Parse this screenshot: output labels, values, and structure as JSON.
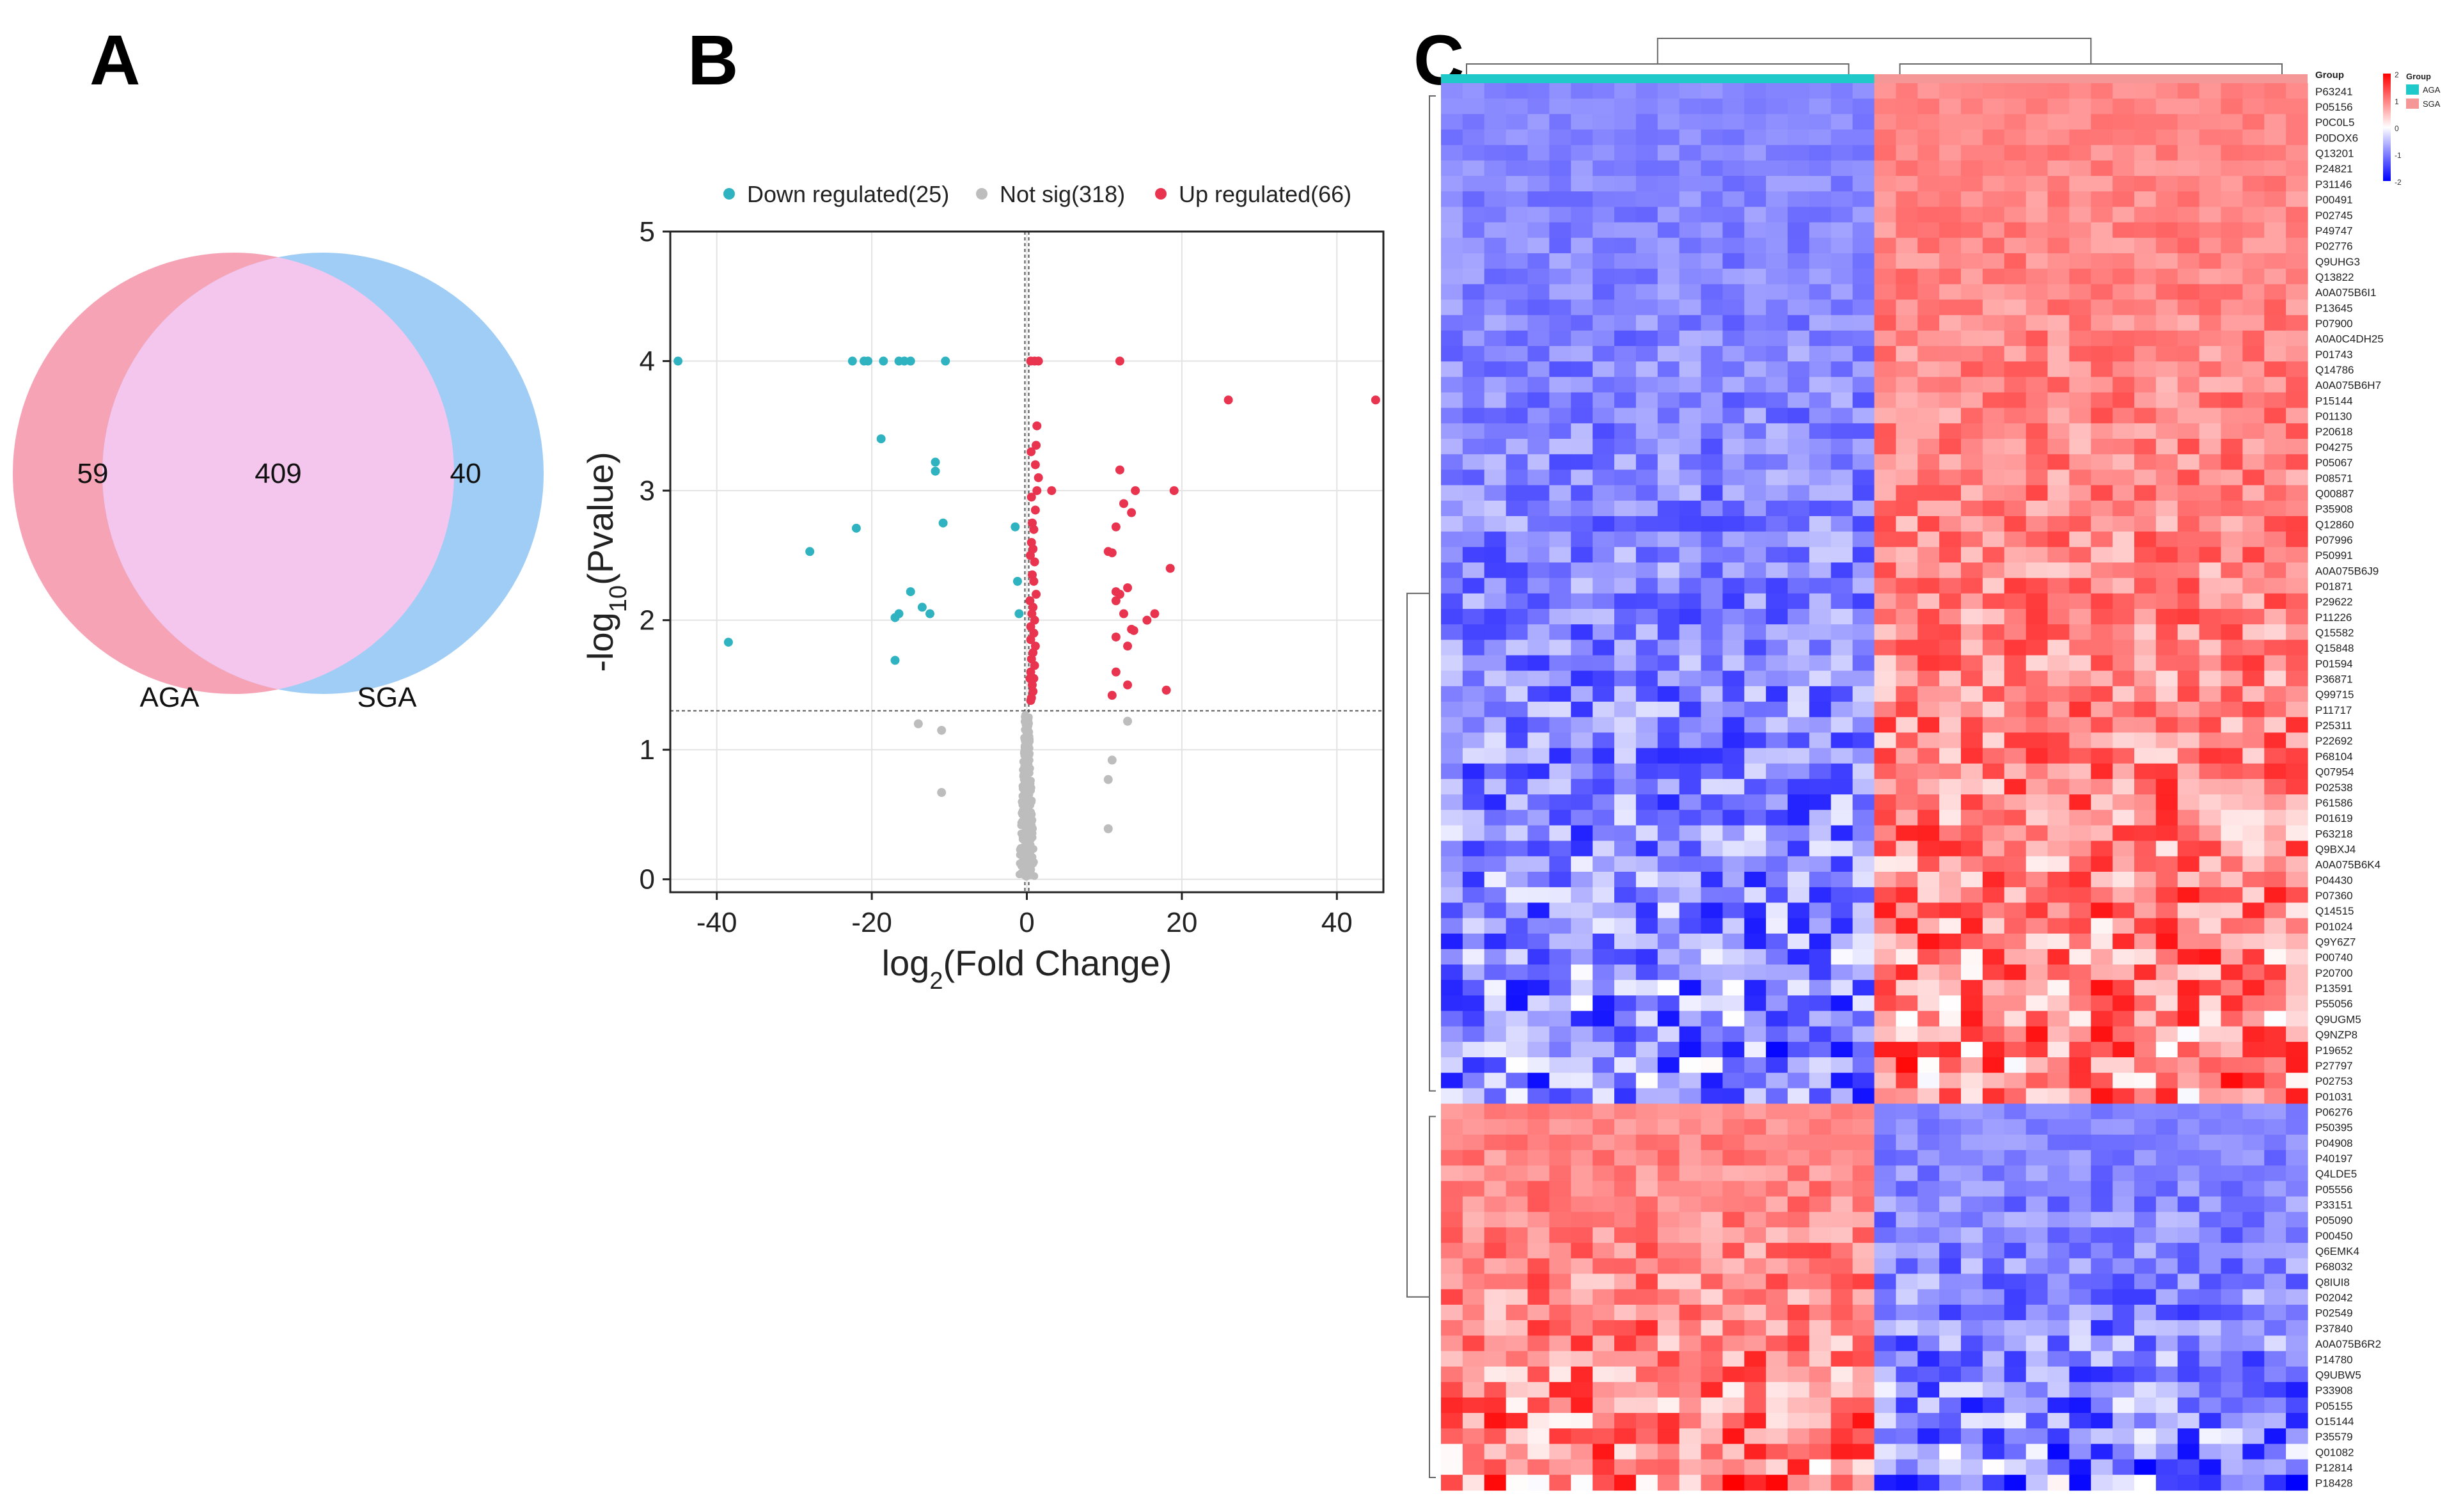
{
  "panels": {
    "a": "A",
    "b": "B",
    "c": "C"
  },
  "chart_data": [
    {
      "type": "venn",
      "sets": [
        {
          "name": "AGA",
          "only": 59,
          "color": "#f7a3b6"
        },
        {
          "name": "SGA",
          "only": 40,
          "color": "#9fcdf5"
        }
      ],
      "intersection": 409,
      "intersection_color": "#f4c6ee"
    },
    {
      "type": "scatter",
      "xlabel": "log2(Fold Change)",
      "ylabel": "-log10(Pvalue)",
      "xlim": [
        -46,
        46
      ],
      "ylim": [
        -0.1,
        5
      ],
      "xticks": [
        -40,
        -20,
        0,
        20,
        40
      ],
      "yticks": [
        0,
        1,
        2,
        3,
        4,
        5
      ],
      "thresholds": {
        "pvalue_line": 1.3,
        "fc_lines": [
          -0.25,
          0.25
        ]
      },
      "legend": {
        "position": "top",
        "entries": [
          {
            "label": "Down regulated(25)",
            "color": "#2fb3c1"
          },
          {
            "label": "Not sig(318)",
            "color": "#bdbdbd"
          },
          {
            "label": "Up regulated(66)",
            "color": "#e8344f"
          }
        ]
      },
      "series": [
        {
          "name": "Down regulated",
          "color": "#2fb3c1",
          "points": [
            [
              -45,
              4
            ],
            [
              -22.5,
              4
            ],
            [
              -21,
              4
            ],
            [
              -20.5,
              4
            ],
            [
              -18.5,
              4
            ],
            [
              -16.5,
              4
            ],
            [
              -15.8,
              4
            ],
            [
              -15,
              4
            ],
            [
              -10.5,
              4
            ],
            [
              -38.5,
              1.83
            ],
            [
              -28,
              2.53
            ],
            [
              -22,
              2.71
            ],
            [
              -18.8,
              3.4
            ],
            [
              -11.8,
              3.22
            ],
            [
              -11.8,
              3.15
            ],
            [
              -10.8,
              2.75
            ],
            [
              -15,
              2.22
            ],
            [
              -13.5,
              2.1
            ],
            [
              -12.5,
              2.05
            ],
            [
              -17,
              2.02
            ],
            [
              -16.5,
              2.05
            ],
            [
              -17,
              1.69
            ],
            [
              -1.5,
              2.72
            ],
            [
              -1.2,
              2.3
            ],
            [
              -1,
              2.05
            ]
          ]
        },
        {
          "name": "Up regulated",
          "color": "#e8344f",
          "points": [
            [
              0.5,
              4
            ],
            [
              1,
              4
            ],
            [
              1.5,
              4
            ],
            [
              12,
              4
            ],
            [
              26,
              3.7
            ],
            [
              45,
              3.7
            ],
            [
              1.3,
              3.5
            ],
            [
              1.2,
              3.35
            ],
            [
              1.1,
              3.2
            ],
            [
              1.5,
              3.1
            ],
            [
              1.3,
              3.0
            ],
            [
              3.2,
              3.0
            ],
            [
              1.1,
              2.85
            ],
            [
              0.9,
              2.7
            ],
            [
              0.8,
              2.55
            ],
            [
              1.0,
              2.45
            ],
            [
              0.9,
              2.3
            ],
            [
              1.2,
              2.2
            ],
            [
              0.8,
              2.1
            ],
            [
              1.0,
              2.0
            ],
            [
              0.9,
              1.9
            ],
            [
              1.1,
              1.8
            ],
            [
              0.8,
              1.75
            ],
            [
              1.0,
              1.65
            ],
            [
              0.9,
              1.55
            ],
            [
              0.7,
              1.5
            ],
            [
              0.8,
              1.45
            ],
            [
              0.6,
              1.4
            ],
            [
              12,
              3.16
            ],
            [
              14,
              3.0
            ],
            [
              19,
              3.0
            ],
            [
              12.5,
              2.9
            ],
            [
              13.5,
              2.83
            ],
            [
              11.5,
              2.72
            ],
            [
              10.5,
              2.53
            ],
            [
              11,
              2.52
            ],
            [
              18.5,
              2.4
            ],
            [
              11.5,
              2.22
            ],
            [
              12,
              2.2
            ],
            [
              13,
              2.25
            ],
            [
              11.5,
              2.15
            ],
            [
              12.5,
              2.05
            ],
            [
              16.5,
              2.05
            ],
            [
              15.5,
              2.0
            ],
            [
              13.5,
              1.93
            ],
            [
              13.8,
              1.92
            ],
            [
              11.5,
              1.87
            ],
            [
              13,
              1.8
            ],
            [
              11.5,
              1.6
            ],
            [
              13,
              1.5
            ],
            [
              18,
              1.46
            ],
            [
              11,
              1.42
            ],
            [
              0.4,
              2.15
            ],
            [
              0.5,
              1.95
            ],
            [
              0.6,
              2.6
            ],
            [
              0.7,
              2.35
            ],
            [
              0.5,
              1.85
            ],
            [
              0.6,
              1.7
            ],
            [
              0.45,
              2.5
            ],
            [
              0.55,
              3.3
            ],
            [
              0.6,
              2.95
            ],
            [
              0.5,
              1.6
            ],
            [
              0.7,
              2.75
            ],
            [
              0.4,
              1.55
            ],
            [
              0.65,
              2.05
            ],
            [
              0.5,
              1.38
            ]
          ]
        },
        {
          "name": "Not sig",
          "color": "#bdbdbd",
          "points": [
            [
              -14,
              1.2
            ],
            [
              -11,
              1.15
            ],
            [
              -11,
              0.67
            ],
            [
              13,
              1.22
            ],
            [
              11,
              0.92
            ],
            [
              10.5,
              0.77
            ],
            [
              10.5,
              0.39
            ]
          ]
        }
      ]
    },
    {
      "type": "heatmap",
      "groups": [
        {
          "name": "AGA",
          "color": "#1fc9c9"
        },
        {
          "name": "SGA",
          "color": "#f59797"
        }
      ],
      "legend_title": "Group",
      "scale_ticks": [
        "2",
        "1",
        "0",
        "-1",
        "-2"
      ],
      "n_per_group": 20,
      "rows": [
        "P63241",
        "P05156",
        "P0C0L5",
        "P0DOX6",
        "Q13201",
        "P24821",
        "P31146",
        "P00491",
        "P02745",
        "P49747",
        "P02776",
        "Q9UHG3",
        "Q13822",
        "A0A075B6I1",
        "P13645",
        "P07900",
        "A0A0C4DH25",
        "P01743",
        "Q14786",
        "A0A075B6H7",
        "P15144",
        "P01130",
        "P20618",
        "P04275",
        "P05067",
        "P08571",
        "Q00887",
        "P35908",
        "Q12860",
        "P07996",
        "P50991",
        "A0A075B6J9",
        "P01871",
        "P29622",
        "P11226",
        "Q15582",
        "Q15848",
        "P01594",
        "P36871",
        "Q99715",
        "P11717",
        "P25311",
        "P22692",
        "P68104",
        "Q07954",
        "P02538",
        "P61586",
        "P01619",
        "P63218",
        "Q9BXJ4",
        "A0A075B6K4",
        "P04430",
        "P07360",
        "Q14515",
        "P01024",
        "Q9Y6Z7",
        "P00740",
        "P20700",
        "P13591",
        "P55056",
        "Q9UGM5",
        "Q9NZP8",
        "P19652",
        "P27797",
        "P02753",
        "P01031",
        "P06276",
        "P50395",
        "P04908",
        "P40197",
        "Q4LDE5",
        "P05556",
        "P33151",
        "P05090",
        "P00450",
        "Q6EMK4",
        "P68032",
        "Q8IUI8",
        "P02042",
        "P02549",
        "P37840",
        "A0A075B6R2",
        "P14780",
        "Q9UBW5",
        "P33908",
        "P05155",
        "O15144",
        "P35579",
        "Q01082",
        "P12814",
        "P18428"
      ],
      "up_rows_in_sga": 66,
      "down_rows_in_sga": 25
    }
  ]
}
